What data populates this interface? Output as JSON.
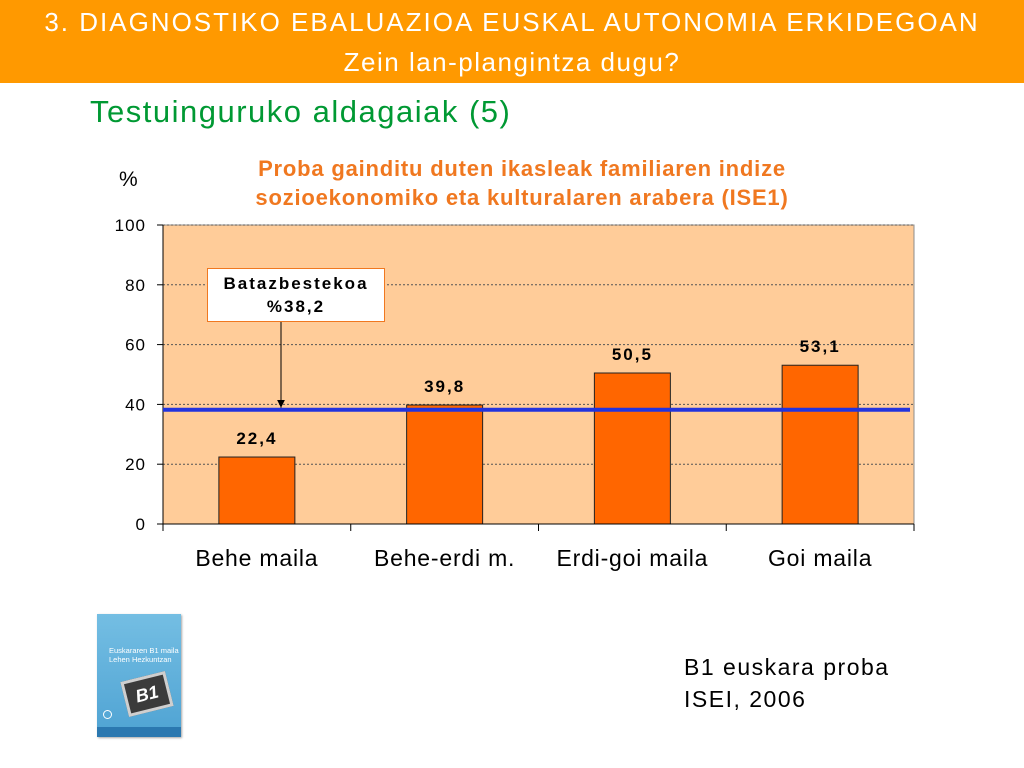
{
  "header": {
    "line1": "3. DIAGNOSTIKO EBALUAZIOA EUSKAL AUTONOMIA ERKIDEGOAN",
    "line2": "Zein lan-plangintza dugu?"
  },
  "subtitle": "Testuinguruko aldagaiak (5)",
  "chart_data": {
    "type": "bar",
    "title": "Proba gainditu duten ikasleak familiaren indize sozioekonomiko eta kulturalaren arabera (ISE1)",
    "ylabel": "%",
    "ylim": [
      0,
      100
    ],
    "yticks": [
      0,
      20,
      40,
      60,
      80,
      100
    ],
    "categories": [
      "Behe maila",
      "Behe-erdi m.",
      "Erdi-goi maila",
      "Goi maila"
    ],
    "values": [
      22.4,
      39.8,
      50.5,
      53.1
    ],
    "value_labels": [
      "22,4",
      "39,8",
      "50,5",
      "53,1"
    ],
    "average": {
      "value": 38.2,
      "label": "Batazbestekoa",
      "value_label": "%38,2"
    },
    "grid": true
  },
  "source": {
    "line1": "B1 euskara proba",
    "line2": "ISEI, 2006"
  },
  "book_cover": {
    "title_line1": "Euskararen B1 maila",
    "title_line2": "Lehen Hezkuntzan",
    "badge": "B1"
  },
  "colors": {
    "header_bg": "#FF9900",
    "header_text": "#FFFFFF",
    "subtitle": "#009933",
    "chart_title": "#F07820",
    "plot_bg": "#FFCC99",
    "bar": "#FF6600",
    "average_line": "#2233DD",
    "callout_border": "#F07820"
  }
}
